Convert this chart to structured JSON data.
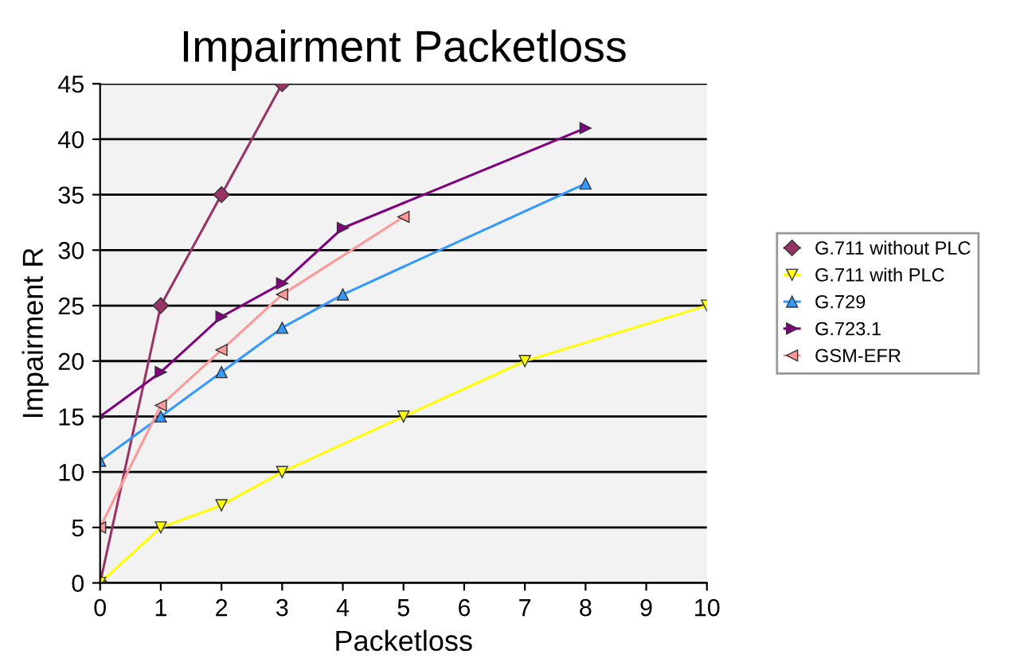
{
  "chart_data": {
    "type": "line",
    "title": "Impairment Packetloss",
    "xlabel": "Packetloss",
    "ylabel": "Impairment R",
    "xlim": [
      0,
      10
    ],
    "xticks": [
      0,
      1,
      2,
      3,
      4,
      5,
      6,
      7,
      8,
      9,
      10
    ],
    "ylim": [
      0,
      45
    ],
    "yticks": [
      0,
      5,
      10,
      15,
      20,
      25,
      30,
      35,
      40,
      45
    ],
    "grid": "y",
    "legend": "right",
    "line_style": "solid",
    "series": [
      {
        "name": "G.711 without PLC",
        "color": "#993366",
        "marker": "diamond",
        "x": [
          0,
          1,
          2,
          3
        ],
        "values": [
          0,
          25,
          35,
          45
        ]
      },
      {
        "name": "G.711 with PLC",
        "color": "#ffff00",
        "marker": "triangle-down",
        "x": [
          0,
          1,
          2,
          3,
          5,
          7,
          10
        ],
        "values": [
          0,
          5,
          7,
          10,
          15,
          20,
          25
        ]
      },
      {
        "name": "G.729",
        "color": "#3399ff",
        "marker": "triangle",
        "x": [
          0,
          1,
          2,
          3,
          4,
          8
        ],
        "values": [
          11,
          15,
          19,
          23,
          26,
          36
        ]
      },
      {
        "name": "G.723.1",
        "color": "#800080",
        "marker": "triangle-right",
        "x": [
          0,
          1,
          2,
          3,
          4,
          8
        ],
        "values": [
          15,
          19,
          24,
          27,
          32,
          41
        ]
      },
      {
        "name": "GSM-EFR",
        "color": "#ff9999",
        "marker": "triangle-left",
        "x": [
          0,
          1,
          2,
          3,
          5
        ],
        "values": [
          5,
          16,
          21,
          26,
          33
        ]
      }
    ]
  }
}
